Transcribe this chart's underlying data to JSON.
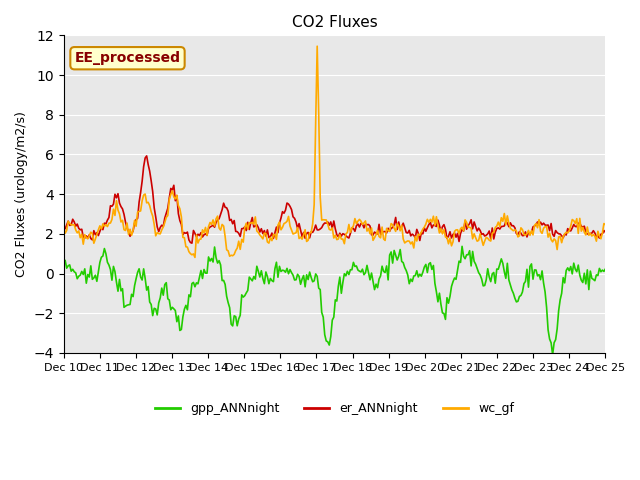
{
  "title": "CO2 Fluxes",
  "ylabel": "CO2 Fluxes (urology/m2/s)",
  "ylim": [
    -4,
    12
  ],
  "bg_color": "#e8e8e8",
  "fig_bg": "#ffffff",
  "label_box_text": "EE_processed",
  "label_box_facecolor": "#ffffcc",
  "label_box_edgecolor": "#cc8800",
  "label_box_textcolor": "#880000",
  "series": {
    "gpp_ANNnight": {
      "color": "#22cc00",
      "lw": 1.2
    },
    "er_ANNnight": {
      "color": "#cc0000",
      "lw": 1.2
    },
    "wc_gf": {
      "color": "#ffaa00",
      "lw": 1.2
    }
  },
  "xtick_labels": [
    "Dec 10",
    "Dec 11",
    "Dec 12",
    "Dec 13",
    "Dec 14",
    "Dec 15",
    "Dec 16",
    "Dec 17",
    "Dec 18",
    "Dec 19",
    "Dec 20",
    "Dec 21",
    "Dec 22",
    "Dec 23",
    "Dec 24",
    "Dec 25"
  ],
  "n_days": 15,
  "pts_per_day": 24
}
